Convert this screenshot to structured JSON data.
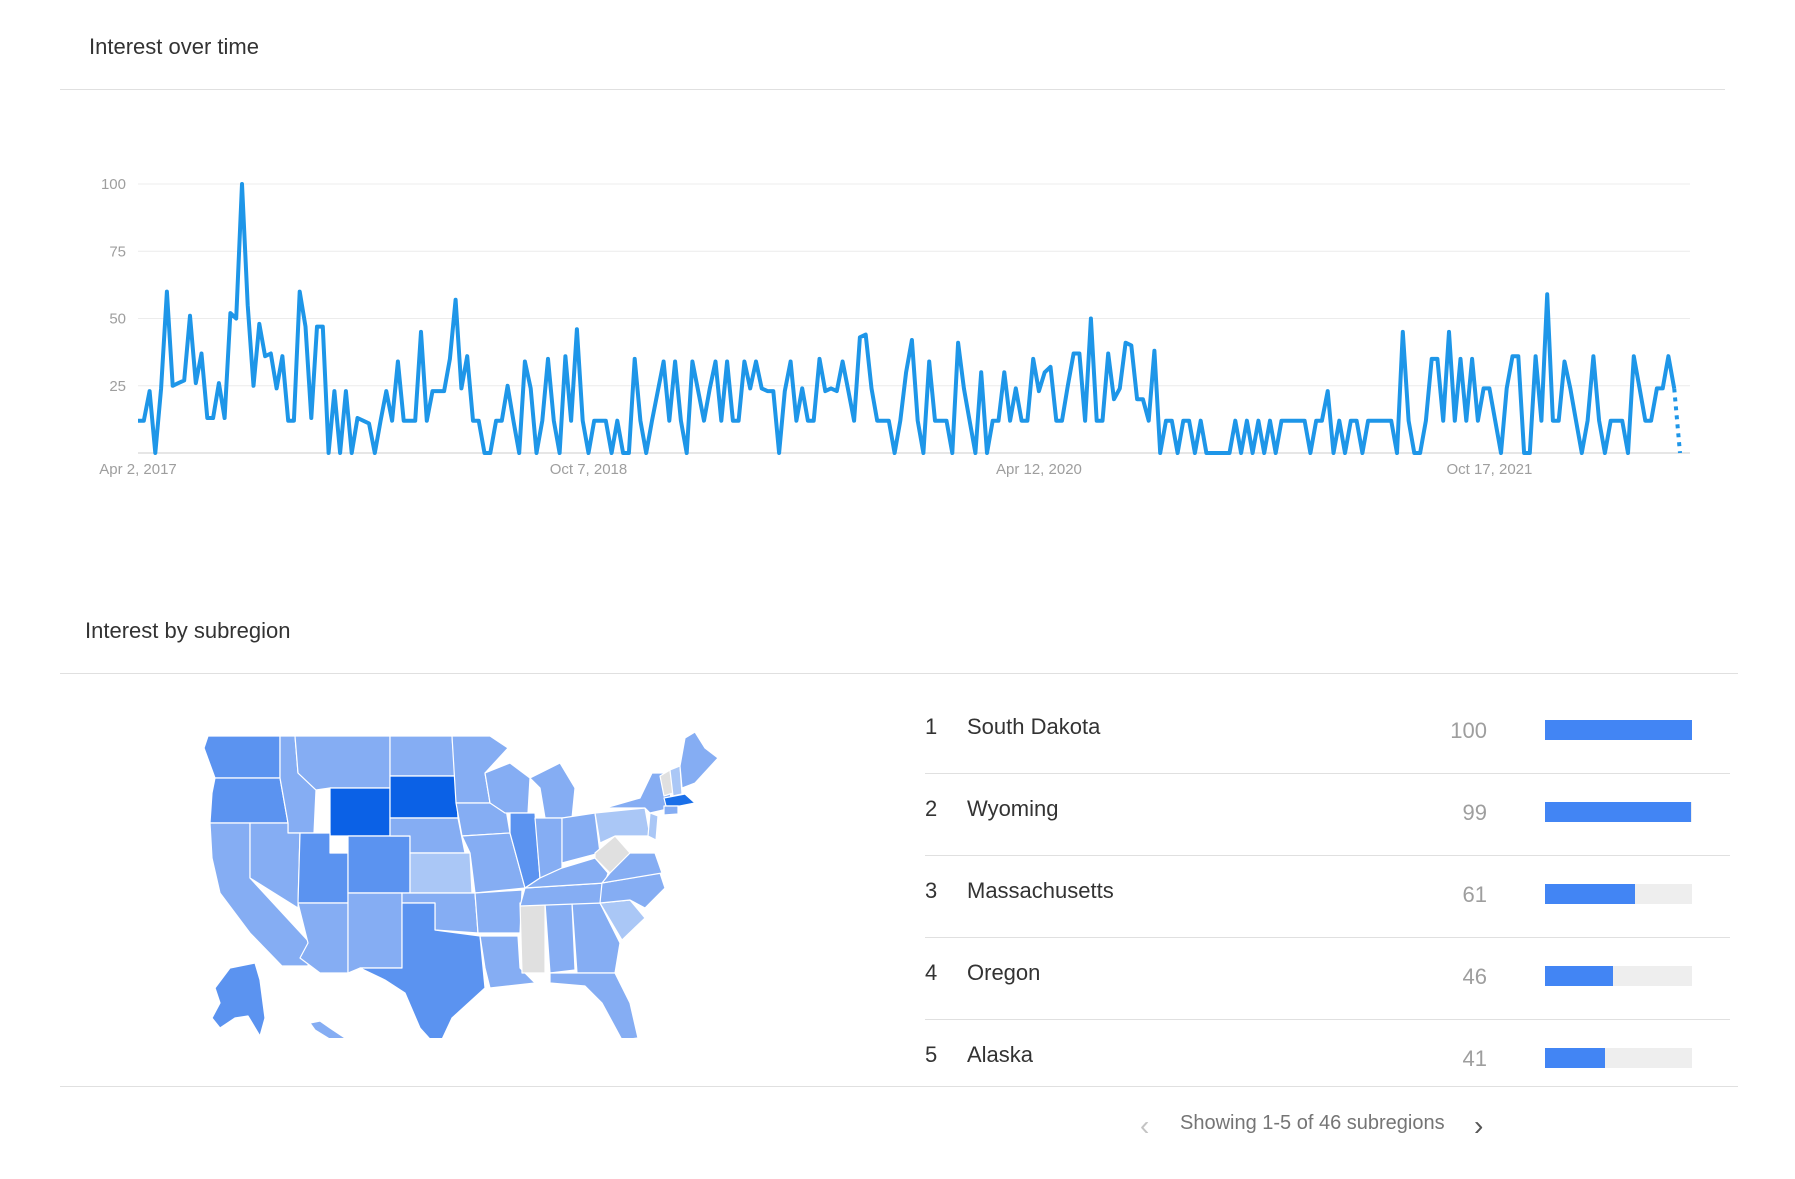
{
  "colors": {
    "line": "#1e96e8",
    "bar": "#4285f4",
    "map_dark": "#0b61e6",
    "map_mid": "#5b93f0",
    "map_light": "#85adf3",
    "map_lighter": "#aac7f6",
    "map_none": "#e0e0e0"
  },
  "interest_over_time": {
    "title": "Interest over time"
  },
  "chart_data": {
    "type": "line",
    "title": "Interest over time",
    "y_ticks": [
      "100",
      "75",
      "50",
      "25"
    ],
    "x_ticks": [
      "Apr 2, 2017",
      "Oct 7, 2018",
      "Apr 12, 2020",
      "Oct 17, 2021"
    ],
    "ylim": [
      0,
      100
    ],
    "grid": true,
    "x_start": "Apr 2, 2017",
    "x_step": "1 week",
    "series": [
      {
        "values": [
          12,
          12,
          23,
          0,
          24,
          60,
          25,
          26,
          27,
          51,
          26,
          37,
          13,
          13,
          26,
          13,
          52,
          50,
          100,
          55,
          25,
          48,
          36,
          37,
          24,
          36,
          12,
          12,
          60,
          47,
          13,
          47,
          47,
          0,
          23,
          0,
          23,
          0,
          13,
          12,
          11,
          0,
          12,
          23,
          12,
          34,
          12,
          12,
          12,
          45,
          12,
          23,
          23,
          23,
          35,
          57,
          24,
          36,
          12,
          12,
          0,
          0,
          12,
          12,
          25,
          12,
          0,
          34,
          24,
          0,
          12,
          35,
          12,
          0,
          36,
          12,
          46,
          12,
          0,
          12,
          12,
          12,
          0,
          12,
          0,
          0,
          35,
          12,
          0,
          12,
          23,
          34,
          12,
          34,
          12,
          0,
          34,
          23,
          12,
          24,
          34,
          12,
          34,
          12,
          12,
          34,
          24,
          34,
          24,
          23,
          23,
          0,
          23,
          34,
          12,
          24,
          12,
          12,
          35,
          23,
          24,
          23,
          34,
          23,
          12,
          43,
          44,
          24,
          12,
          12,
          12,
          0,
          12,
          30,
          42,
          12,
          0,
          34,
          12,
          12,
          12,
          0,
          41,
          24,
          12,
          0,
          30,
          0,
          12,
          12,
          30,
          12,
          24,
          12,
          12,
          35,
          23,
          30,
          32,
          12,
          12,
          25,
          37,
          37,
          12,
          50,
          12,
          12,
          37,
          20,
          24,
          41,
          40,
          20,
          20,
          12,
          38,
          0,
          12,
          12,
          0,
          12,
          12,
          0,
          12,
          0,
          0,
          0,
          0,
          0,
          12,
          0,
          12,
          0,
          12,
          0,
          12,
          0,
          12,
          12,
          12,
          12,
          12,
          0,
          12,
          12,
          23,
          0,
          12,
          0,
          12,
          12,
          0,
          12,
          12,
          12,
          12,
          12,
          0,
          45,
          12,
          0,
          0,
          12,
          35,
          35,
          12,
          45,
          12,
          35,
          12,
          35,
          12,
          24,
          24,
          12,
          0,
          24,
          36,
          36,
          0,
          0,
          36,
          12,
          59,
          12,
          12,
          34,
          24,
          12,
          0,
          12,
          36,
          12,
          0,
          12,
          12,
          12,
          0,
          36,
          24,
          12,
          12,
          24,
          24,
          36,
          24
        ],
        "partial_last_value": 0
      }
    ]
  },
  "interest_by_subregion": {
    "title": "Interest by subregion",
    "map_label": "United States map",
    "rows": [
      {
        "rank": "1",
        "name": "South Dakota",
        "value": "100",
        "bar": 100
      },
      {
        "rank": "2",
        "name": "Wyoming",
        "value": "99",
        "bar": 99
      },
      {
        "rank": "3",
        "name": "Massachusetts",
        "value": "61",
        "bar": 61
      },
      {
        "rank": "4",
        "name": "Oregon",
        "value": "46",
        "bar": 46
      },
      {
        "rank": "5",
        "name": "Alaska",
        "value": "41",
        "bar": 41
      }
    ],
    "pager_text": "Showing 1-5 of 46 subregions",
    "prev_icon": "chevron-left-icon",
    "next_icon": "chevron-right-icon"
  }
}
